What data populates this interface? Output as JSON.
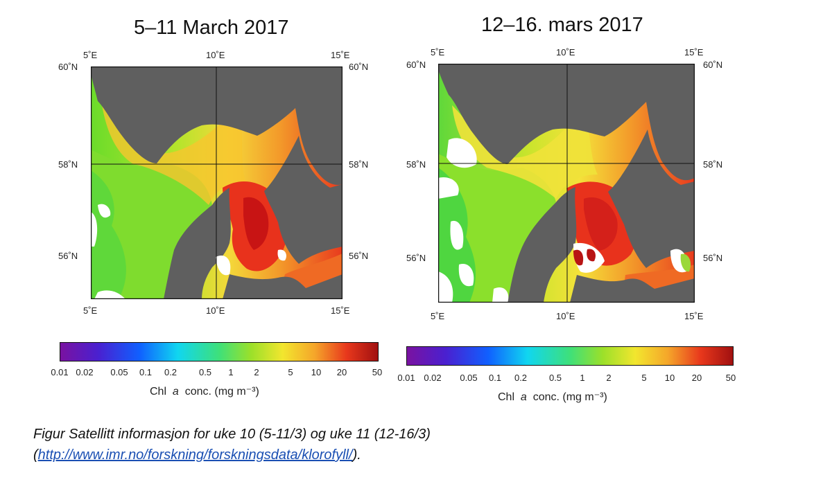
{
  "maps": [
    {
      "title": "5–11 March 2017",
      "lon_labels": [
        "5˚E",
        "10˚E",
        "15˚E"
      ],
      "lat_labels": [
        "60˚N",
        "58˚N",
        "56˚N"
      ]
    },
    {
      "title": "12–16. mars 2017",
      "lon_labels": [
        "5˚E",
        "10˚E",
        "15˚E"
      ],
      "lat_labels": [
        "60˚N",
        "58˚N",
        "56˚N"
      ]
    }
  ],
  "colorbar": {
    "ticks": [
      "0.01",
      "0.02",
      "0.05",
      "0.1",
      "0.2",
      "0.5",
      "1",
      "2",
      "5",
      "10",
      "20",
      "50"
    ],
    "label_prefix": "Chl",
    "label_italic": "a",
    "label_suffix": "conc. (mg m⁻³)",
    "colors": {
      "land": "#5f5f5f",
      "no_data": "#ffffff"
    }
  },
  "caption": {
    "line1": "Figur Satellitt informasjon for uke 10 (5-11/3) og uke 11 (12-16/3)",
    "open": "(",
    "link": "http://www.imr.no/forskning/forskningsdata/klorofyll/",
    "close": ")."
  }
}
